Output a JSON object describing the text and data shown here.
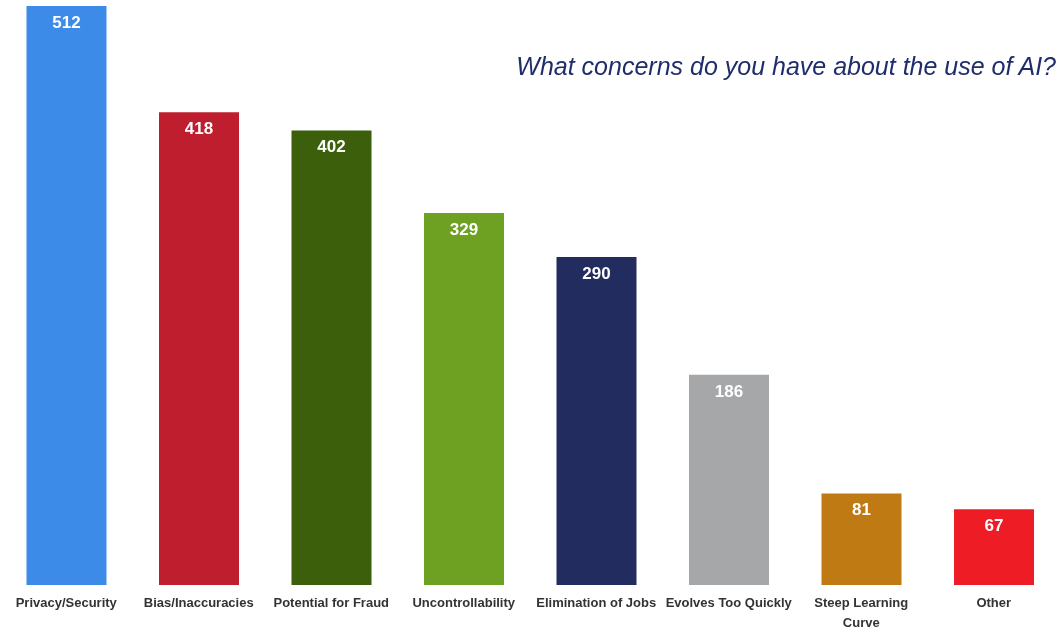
{
  "chart_data": {
    "type": "bar",
    "title": "What concerns do you have about the use of AI?",
    "categories": [
      "Privacy/Security",
      "Bias/Inaccuracies",
      "Potential for Fraud",
      "Uncontrollability",
      "Elimination of Jobs",
      "Evolves Too Quickly",
      "Steep Learning Curve",
      "Other"
    ],
    "values": [
      512,
      418,
      402,
      329,
      290,
      186,
      81,
      67
    ],
    "colors": [
      "#3d8be8",
      "#be1e2d",
      "#3b5f0a",
      "#6ea122",
      "#232c5f",
      "#a6a7a9",
      "#bf7a14",
      "#ee1c25"
    ],
    "data_labels": true,
    "grid": false,
    "legend": false
  }
}
